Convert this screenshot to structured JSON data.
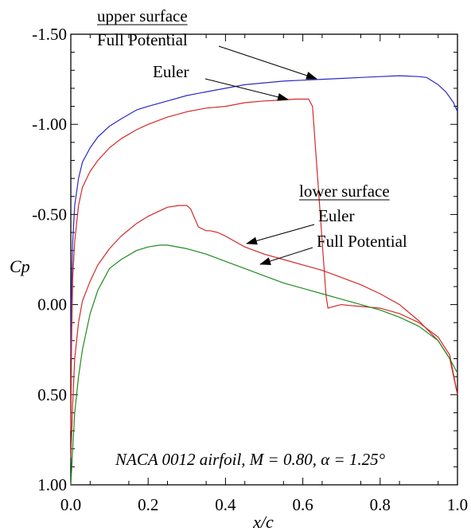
{
  "chart_data": {
    "type": "line",
    "xlabel": "x/c",
    "ylabel": "Cp",
    "xlim": [
      0.0,
      1.0
    ],
    "ylim": [
      -1.5,
      1.0
    ],
    "y_inverted": true,
    "grid": false,
    "x_ticks": [
      "0.0",
      "0.2",
      "0.4",
      "0.6",
      "0.8",
      "1.0"
    ],
    "y_ticks": [
      "-1.50",
      "-1.00",
      "-0.50",
      "0.00",
      "0.50",
      "1.00"
    ],
    "annotation": "NACA 0012 airfoil, M = 0.80,  α = 1.25°",
    "colors": {
      "upper_full_potential": "#2a2ac8",
      "upper_euler": "#d42a2a",
      "lower_euler": "#d42a2a",
      "lower_full_potential": "#1f8c1f"
    },
    "labels": {
      "upper_surface": "upper surface",
      "lower_surface": "lower surface",
      "upper_full_potential": "Full Potential",
      "upper_euler": "Euler",
      "lower_euler": "Euler",
      "lower_full_potential": "Full Potential"
    },
    "series": [
      {
        "key": "upper_full_potential",
        "x": [
          0.0,
          0.002,
          0.005,
          0.01,
          0.02,
          0.03,
          0.05,
          0.07,
          0.1,
          0.13,
          0.17,
          0.2,
          0.25,
          0.3,
          0.35,
          0.4,
          0.45,
          0.5,
          0.55,
          0.6,
          0.65,
          0.7,
          0.75,
          0.8,
          0.85,
          0.9,
          0.92,
          0.95,
          0.97,
          0.99,
          1.0
        ],
        "y": [
          0.3,
          -0.1,
          -0.35,
          -0.55,
          -0.7,
          -0.79,
          -0.87,
          -0.93,
          -0.99,
          -1.03,
          -1.08,
          -1.1,
          -1.13,
          -1.16,
          -1.18,
          -1.2,
          -1.22,
          -1.23,
          -1.24,
          -1.245,
          -1.25,
          -1.255,
          -1.26,
          -1.265,
          -1.27,
          -1.265,
          -1.26,
          -1.22,
          -1.18,
          -1.12,
          -1.07
        ]
      },
      {
        "key": "upper_euler",
        "x": [
          0.0,
          0.002,
          0.005,
          0.01,
          0.02,
          0.03,
          0.05,
          0.07,
          0.1,
          0.13,
          0.17,
          0.2,
          0.25,
          0.3,
          0.35,
          0.4,
          0.45,
          0.5,
          0.55,
          0.58,
          0.6,
          0.615,
          0.625,
          0.66,
          0.665,
          0.68,
          0.7,
          0.72,
          0.75,
          0.8,
          0.85,
          0.9,
          0.95,
          0.98,
          1.0
        ],
        "y": [
          0.7,
          0.2,
          -0.15,
          -0.35,
          -0.55,
          -0.65,
          -0.74,
          -0.8,
          -0.87,
          -0.92,
          -0.97,
          -1.0,
          -1.04,
          -1.07,
          -1.09,
          -1.1,
          -1.12,
          -1.13,
          -1.135,
          -1.14,
          -1.14,
          -1.14,
          -1.1,
          -0.05,
          0.02,
          0.01,
          0.0,
          0.005,
          0.01,
          0.02,
          0.05,
          0.1,
          0.18,
          0.28,
          0.5
        ]
      },
      {
        "key": "lower_euler",
        "x": [
          0.0,
          0.005,
          0.01,
          0.02,
          0.03,
          0.05,
          0.07,
          0.1,
          0.13,
          0.17,
          0.2,
          0.25,
          0.28,
          0.3,
          0.31,
          0.33,
          0.35,
          0.36,
          0.38,
          0.4,
          0.45,
          0.5,
          0.55,
          0.6,
          0.65,
          0.7,
          0.75,
          0.8,
          0.85,
          0.9,
          0.95,
          0.98,
          1.0
        ],
        "y": [
          0.85,
          0.55,
          0.3,
          0.1,
          -0.02,
          -0.13,
          -0.22,
          -0.31,
          -0.38,
          -0.45,
          -0.49,
          -0.54,
          -0.55,
          -0.55,
          -0.53,
          -0.43,
          -0.41,
          -0.41,
          -0.4,
          -0.38,
          -0.32,
          -0.28,
          -0.25,
          -0.22,
          -0.19,
          -0.15,
          -0.11,
          -0.06,
          0.0,
          0.09,
          0.2,
          0.3,
          0.5
        ]
      },
      {
        "key": "lower_full_potential",
        "x": [
          0.0,
          0.005,
          0.01,
          0.02,
          0.03,
          0.05,
          0.07,
          0.1,
          0.13,
          0.17,
          0.2,
          0.23,
          0.25,
          0.3,
          0.35,
          0.4,
          0.45,
          0.5,
          0.55,
          0.6,
          0.65,
          0.7,
          0.75,
          0.8,
          0.85,
          0.9,
          0.95,
          0.98,
          1.0
        ],
        "y": [
          1.0,
          0.8,
          0.6,
          0.4,
          0.25,
          0.05,
          -0.08,
          -0.2,
          -0.25,
          -0.3,
          -0.32,
          -0.33,
          -0.33,
          -0.31,
          -0.28,
          -0.24,
          -0.2,
          -0.16,
          -0.12,
          -0.09,
          -0.06,
          -0.03,
          0.0,
          0.03,
          0.07,
          0.12,
          0.2,
          0.3,
          0.38
        ]
      }
    ]
  }
}
